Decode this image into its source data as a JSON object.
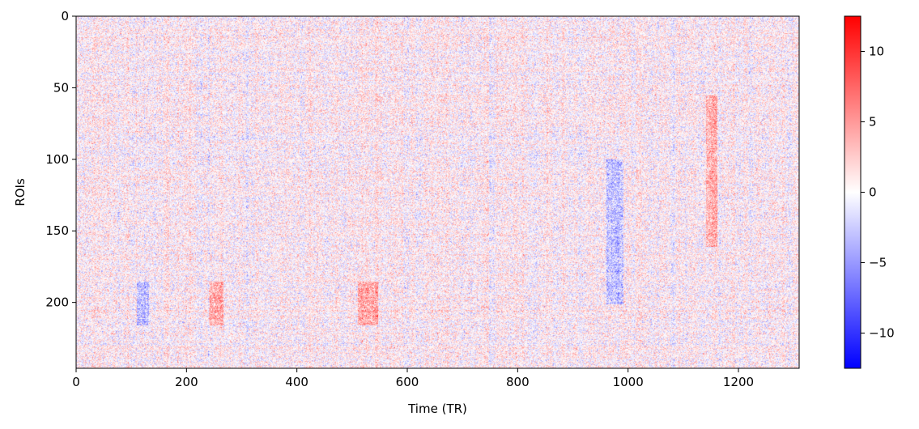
{
  "chart_data": {
    "type": "heatmap",
    "title": "",
    "xlabel": "Time (TR)",
    "ylabel": "ROIs",
    "xlim": [
      0,
      1310
    ],
    "ylim": [
      246,
      0
    ],
    "x_ticks": [
      0,
      200,
      400,
      600,
      800,
      1000,
      1200
    ],
    "y_ticks": [
      0,
      50,
      100,
      150,
      200
    ],
    "n_rows": 246,
    "n_cols": 1310,
    "colormap": "bwr",
    "colormap_colors": [
      "#0000ff",
      "#ffffff",
      "#ff0000"
    ],
    "vmin": -12.5,
    "vmax": 12.5,
    "colorbar": {
      "ticks": [
        10,
        5,
        0,
        -5,
        -10
      ],
      "tick_labels": [
        "10",
        "5",
        "0",
        "−5",
        "−10"
      ]
    },
    "notable_bands": [
      {
        "x_range": [
          240,
          265
        ],
        "y_range": [
          185,
          215
        ],
        "polarity": "positive"
      },
      {
        "x_range": [
          510,
          545
        ],
        "y_range": [
          185,
          215
        ],
        "polarity": "positive"
      },
      {
        "x_range": [
          110,
          130
        ],
        "y_range": [
          185,
          215
        ],
        "polarity": "negative"
      },
      {
        "x_range": [
          1140,
          1160
        ],
        "y_range": [
          55,
          160
        ],
        "polarity": "positive"
      },
      {
        "x_range": [
          960,
          990
        ],
        "y_range": [
          100,
          200
        ],
        "polarity": "negative"
      }
    ]
  }
}
